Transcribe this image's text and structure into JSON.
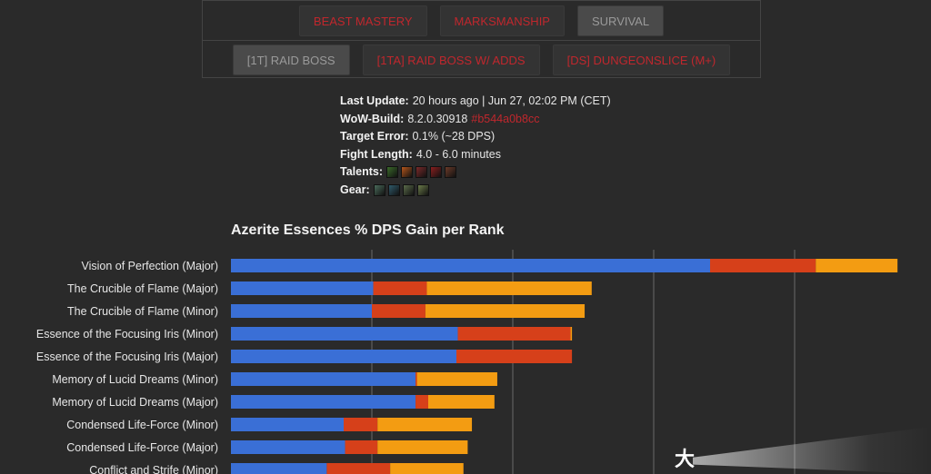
{
  "tabs": {
    "specs": [
      {
        "label": "BEAST MASTERY",
        "active": false
      },
      {
        "label": "MARKSMANSHIP",
        "active": false
      },
      {
        "label": "SURVIVAL",
        "active": true
      }
    ],
    "fights": [
      {
        "label": "[1T] RAID BOSS",
        "active": true
      },
      {
        "label": "[1TA] RAID BOSS W/ ADDS",
        "active": false
      },
      {
        "label": "[DS] DUNGEONSLICE (M+)",
        "active": false
      }
    ]
  },
  "meta": {
    "last_update_label": "Last Update:",
    "last_update_value": "20 hours ago | Jun 27, 02:02 PM (CET)",
    "build_label": "WoW-Build:",
    "build_value": "8.2.0.30918",
    "build_hash": "#b544a0b8cc",
    "target_error_label": "Target Error:",
    "target_error_value": "0.1% (~28 DPS)",
    "fight_length_label": "Fight Length:",
    "fight_length_value": "4.0 - 6.0 minutes",
    "talents_label": "Talents:",
    "gear_label": "Gear:",
    "talent_icons": [
      "#3b6b2a",
      "#b4561c",
      "#7a2a2a",
      "#8a1f1f",
      "#6a3a28"
    ],
    "gear_icons": [
      "#4a6a5a",
      "#2f5a6a",
      "#5a6a4a",
      "#6a7a4a"
    ]
  },
  "chart_data": {
    "type": "bar",
    "orientation": "horizontal",
    "stacked": true,
    "title": "Azerite Essences % DPS Gain per Rank",
    "xlabel": "",
    "ylabel": "",
    "grid": true,
    "xlim": [
      0,
      4.75
    ],
    "categories": [
      "Vision of Perfection (Major)",
      "The Crucible of Flame (Major)",
      "The Crucible of Flame (Minor)",
      "Essence of the Focusing Iris (Minor)",
      "Essence of the Focusing Iris (Major)",
      "Memory of Lucid Dreams (Minor)",
      "Memory of Lucid Dreams (Major)",
      "Condensed Life-Force (Minor)",
      "Condensed Life-Force (Major)",
      "Conflict and Strife (Minor)"
    ],
    "series": [
      {
        "color": "#3a6fd6",
        "values": [
          3.4,
          1.01,
          1.0,
          1.61,
          1.6,
          1.31,
          1.31,
          0.8,
          0.81,
          0.68
        ]
      },
      {
        "color": "#d6401a",
        "values": [
          0.75,
          0.38,
          0.38,
          0.8,
          0.82,
          0.01,
          0.09,
          0.24,
          0.23,
          0.45
        ]
      },
      {
        "color": "#f39c12",
        "values": [
          0.58,
          1.17,
          1.13,
          0.01,
          0.0,
          0.57,
          0.47,
          0.67,
          0.64,
          0.52
        ]
      }
    ]
  }
}
